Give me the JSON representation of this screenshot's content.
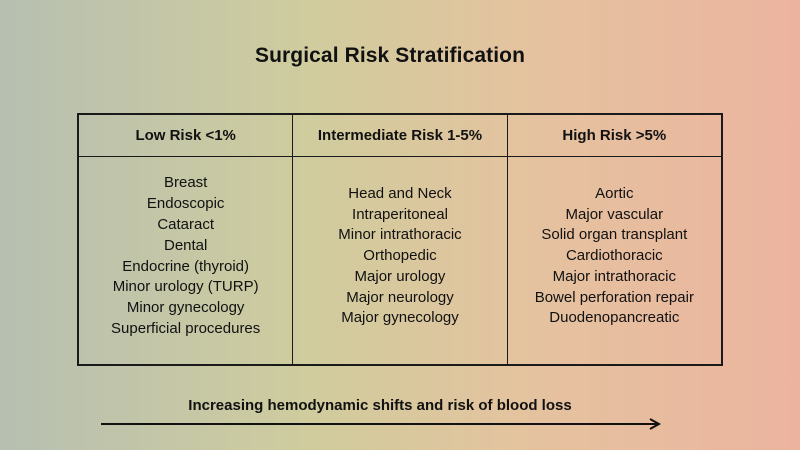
{
  "title": "Surgical Risk Stratification",
  "columns": [
    {
      "header": "Low Risk <1%",
      "items": [
        "Breast",
        "Endoscopic",
        "Cataract",
        "Dental",
        "Endocrine (thyroid)",
        "Minor urology (TURP)",
        "Minor gynecology",
        "Superficial procedures"
      ]
    },
    {
      "header": "Intermediate Risk 1-5%",
      "items": [
        "Head and Neck",
        "Intraperitoneal",
        "Minor intrathoracic",
        "Orthopedic",
        "Major urology",
        "Major neurology",
        "Major gynecology"
      ]
    },
    {
      "header": "High Risk >5%",
      "items": [
        "Aortic",
        "Major vascular",
        "Solid organ transplant",
        "Cardiothoracic",
        "Major intrathoracic",
        "Bowel perforation repair",
        "Duodenopancreatic"
      ]
    }
  ],
  "caption": "Increasing hemodynamic shifts and risk of blood loss",
  "colors": {
    "border": "#1a1a1a",
    "text": "#111111",
    "arrow": "#111111"
  },
  "arrow_icon": "arrow-right-icon"
}
